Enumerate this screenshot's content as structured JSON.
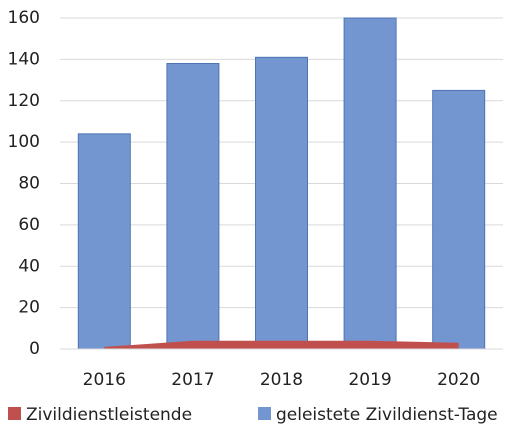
{
  "chart_data": {
    "type": "bar",
    "categories": [
      "2016",
      "2017",
      "2018",
      "2019",
      "2020"
    ],
    "series": [
      {
        "name": "Zivildienstleistende",
        "type": "area",
        "color": "#c0504d",
        "values": [
          1,
          4,
          4,
          4,
          3
        ]
      },
      {
        "name": "geleistete Zivildienst-Tage",
        "type": "bar",
        "color": "#7396d0",
        "values": [
          104,
          138,
          141,
          160,
          125
        ]
      }
    ],
    "ylim": [
      0,
      160
    ],
    "yticks": [
      0,
      20,
      40,
      60,
      80,
      100,
      120,
      140,
      160
    ],
    "grid": true,
    "legend": "bottom"
  }
}
